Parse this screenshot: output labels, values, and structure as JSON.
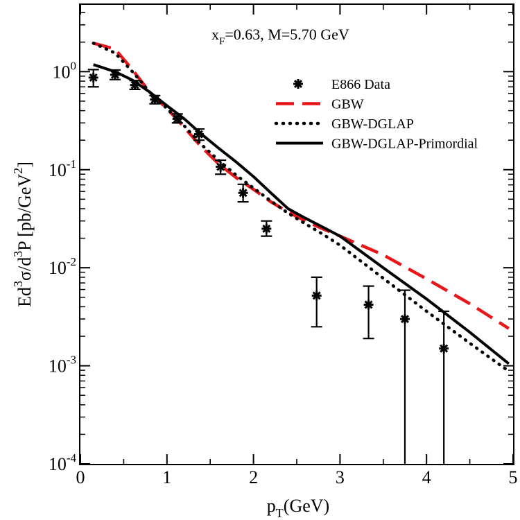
{
  "chart_data": {
    "type": "line",
    "annotation": {
      "parts": [
        {
          "text": "x",
          "sub": false
        },
        {
          "text": "F",
          "sub": true
        },
        {
          "text": "=0.63, M=5.70 GeV",
          "sub": false
        }
      ]
    },
    "xlabel": {
      "main": "p",
      "sub": "T",
      "tail": "(GeV)"
    },
    "ylabel": {
      "parts": [
        {
          "text": "Ed",
          "sup": false
        },
        {
          "text": "3",
          "sup": true
        },
        {
          "text": "σ/d",
          "sup": false
        },
        {
          "text": "3",
          "sup": true
        },
        {
          "text": "P [pb/GeV",
          "sup": false
        },
        {
          "text": "2",
          "sup": true
        },
        {
          "text": "]",
          "sup": false
        }
      ]
    },
    "xlim": [
      0,
      5
    ],
    "ylim": [
      0.0001,
      5
    ],
    "yscale": "log",
    "grid": false,
    "legend_position": "top-right",
    "x_ticks": [
      {
        "value": 0,
        "label": "0"
      },
      {
        "value": 1,
        "label": "1"
      },
      {
        "value": 2,
        "label": "2"
      },
      {
        "value": 3,
        "label": "3"
      },
      {
        "value": 4,
        "label": "4"
      },
      {
        "value": 5,
        "label": "5"
      }
    ],
    "y_ticks": [
      {
        "value": 1,
        "base": "10",
        "exp": "0"
      },
      {
        "value": 0.1,
        "base": "10",
        "exp": "-1"
      },
      {
        "value": 0.01,
        "base": "10",
        "exp": "-2"
      },
      {
        "value": 0.001,
        "base": "10",
        "exp": "-3"
      },
      {
        "value": 0.0001,
        "base": "10",
        "exp": "-4"
      }
    ],
    "data_points": {
      "name": "E866 Data",
      "color": "#000000",
      "points": [
        {
          "x": 0.15,
          "y": 0.87,
          "lo": 0.7,
          "hi": 1.05
        },
        {
          "x": 0.4,
          "y": 0.93,
          "lo": 0.83,
          "hi": 1.04
        },
        {
          "x": 0.63,
          "y": 0.73,
          "lo": 0.66,
          "hi": 0.81
        },
        {
          "x": 0.86,
          "y": 0.52,
          "lo": 0.47,
          "hi": 0.57
        },
        {
          "x": 1.12,
          "y": 0.33,
          "lo": 0.3,
          "hi": 0.37
        },
        {
          "x": 1.37,
          "y": 0.23,
          "lo": 0.2,
          "hi": 0.26
        },
        {
          "x": 1.62,
          "y": 0.107,
          "lo": 0.09,
          "hi": 0.125
        },
        {
          "x": 1.88,
          "y": 0.058,
          "lo": 0.047,
          "hi": 0.071
        },
        {
          "x": 2.15,
          "y": 0.025,
          "lo": 0.021,
          "hi": 0.03
        },
        {
          "x": 2.73,
          "y": 0.0052,
          "lo": 0.0025,
          "hi": 0.008
        },
        {
          "x": 3.33,
          "y": 0.0042,
          "lo": 0.0019,
          "hi": 0.0065
        },
        {
          "x": 3.75,
          "y": 0.003,
          "lo": 0.0001,
          "hi": 0.0059
        },
        {
          "x": 4.2,
          "y": 0.0015,
          "lo": 0.0001,
          "hi": 0.0036
        }
      ]
    },
    "series": [
      {
        "name": "GBW",
        "color": "#e8161a",
        "style": "dashed",
        "x": [
          0.15,
          0.4,
          0.6,
          0.8,
          1.0,
          1.2,
          1.4,
          1.6,
          1.8,
          2.0,
          2.2,
          2.4,
          2.6,
          2.8,
          3.0,
          3.5,
          4.0,
          4.5,
          4.95
        ],
        "y": [
          1.95,
          1.7,
          1.05,
          0.62,
          0.42,
          0.27,
          0.17,
          0.114,
          0.083,
          0.063,
          0.047,
          0.037,
          0.03,
          0.025,
          0.021,
          0.0135,
          0.0077,
          0.0043,
          0.0024
        ]
      },
      {
        "name": "GBW-DGLAP",
        "color": "#000000",
        "style": "dotted",
        "x": [
          0.15,
          0.4,
          0.6,
          0.8,
          1.0,
          1.2,
          1.4,
          1.6,
          1.8,
          2.0,
          2.2,
          2.4,
          2.6,
          2.8,
          3.0,
          3.5,
          4.0,
          4.5,
          4.95
        ],
        "y": [
          1.95,
          1.55,
          1.0,
          0.62,
          0.42,
          0.28,
          0.18,
          0.124,
          0.088,
          0.065,
          0.048,
          0.036,
          0.028,
          0.022,
          0.017,
          0.0078,
          0.0036,
          0.0017,
          0.00088
        ]
      },
      {
        "name": "GBW-DGLAP-Primordial",
        "color": "#000000",
        "style": "solid",
        "x": [
          0.15,
          0.4,
          0.6,
          0.8,
          1.0,
          1.2,
          1.4,
          1.6,
          1.8,
          2.0,
          2.2,
          2.4,
          2.6,
          2.8,
          3.0,
          3.5,
          4.0,
          4.5,
          4.95
        ],
        "y": [
          1.18,
          1.0,
          0.82,
          0.62,
          0.45,
          0.33,
          0.23,
          0.165,
          0.12,
          0.085,
          0.058,
          0.04,
          0.032,
          0.026,
          0.021,
          0.01,
          0.0048,
          0.0022,
          0.00105
        ]
      }
    ]
  }
}
